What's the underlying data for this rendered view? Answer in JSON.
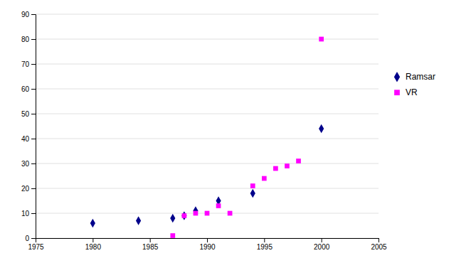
{
  "chart_data": {
    "type": "scatter",
    "series": [
      {
        "name": "Ramsar",
        "color": "#00008B",
        "marker": "diamond",
        "x": [
          1980,
          1984,
          1987,
          1988,
          1989,
          1991,
          1994,
          2000
        ],
        "values": [
          6,
          7,
          8,
          9,
          11,
          15,
          18,
          44
        ]
      },
      {
        "name": "VR",
        "color": "#FF00FF",
        "marker": "square",
        "x": [
          1987,
          1988,
          1989,
          1990,
          1991,
          1992,
          1994,
          1995,
          1996,
          1997,
          1998,
          2000
        ],
        "values": [
          1,
          9,
          10,
          10,
          13,
          10,
          21,
          24,
          28,
          29,
          31,
          80
        ]
      }
    ],
    "xlim": [
      1975,
      2005
    ],
    "ylim": [
      0,
      90
    ],
    "xticks": [
      1975,
      1980,
      1985,
      1990,
      1995,
      2000,
      2005
    ],
    "yticks": [
      0,
      10,
      20,
      30,
      40,
      50,
      60,
      70,
      80,
      90
    ],
    "grid": true,
    "legend": "right"
  }
}
